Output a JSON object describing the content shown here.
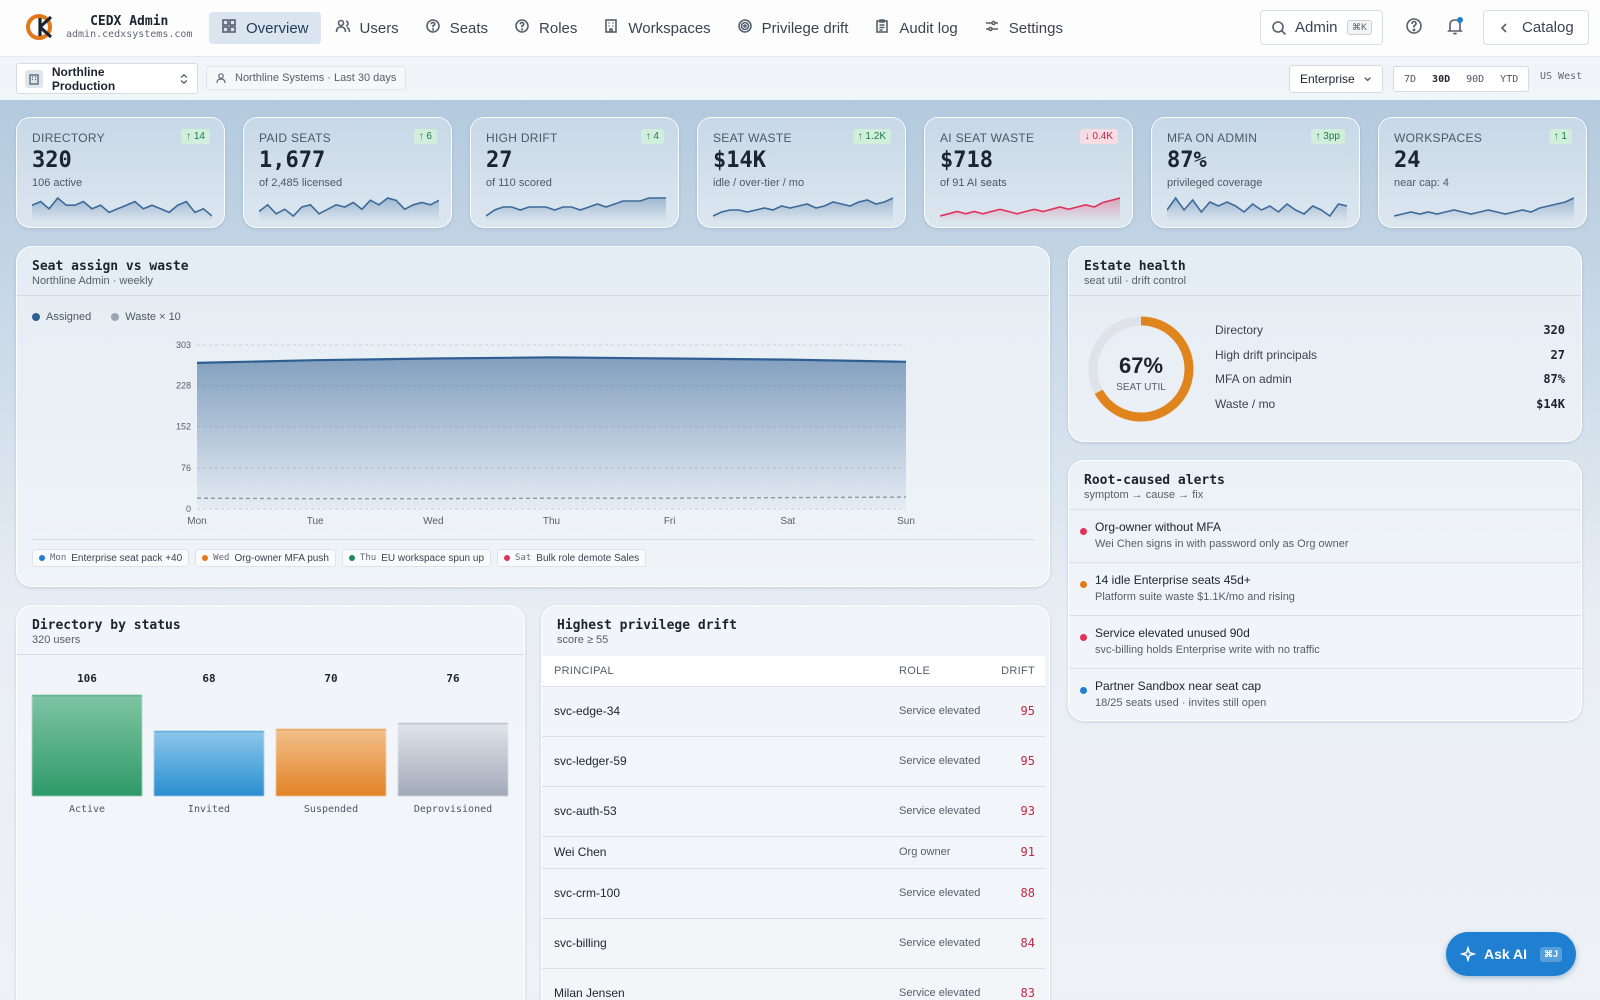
{
  "brand": {
    "name": "CEDX Admin",
    "domain": "admin.cedxsystems.com"
  },
  "nav": [
    {
      "label": "Overview",
      "icon": "grid-icon",
      "active": true
    },
    {
      "label": "Users",
      "icon": "users-icon"
    },
    {
      "label": "Seats",
      "icon": "help-circle-icon"
    },
    {
      "label": "Roles",
      "icon": "help-circle-icon"
    },
    {
      "label": "Workspaces",
      "icon": "building-icon"
    },
    {
      "label": "Privilege drift",
      "icon": "target-icon"
    },
    {
      "label": "Audit log",
      "icon": "clipboard-icon"
    },
    {
      "label": "Settings",
      "icon": "sliders-icon"
    }
  ],
  "search": {
    "label": "Admin",
    "shortcut": "⌘K"
  },
  "catalog": {
    "label": "Catalog"
  },
  "scope": {
    "org": "Northline Production",
    "context": "Northline Systems · Last 30 days",
    "plan": "Enterprise",
    "ranges": [
      "7D",
      "30D",
      "90D",
      "YTD"
    ],
    "active_range": "30D",
    "region": "US West"
  },
  "kpis": [
    {
      "label": "DIRECTORY",
      "delta": "↑ 14",
      "dir": "up",
      "value": "320",
      "sub": "106 active",
      "color": "#3c6a9a",
      "spark": [
        12,
        13,
        11,
        14,
        12,
        12,
        13,
        11,
        12,
        10,
        11,
        12,
        13,
        11,
        12,
        11,
        10,
        12,
        13,
        10,
        11,
        9
      ]
    },
    {
      "label": "PAID SEATS",
      "delta": "↑ 6",
      "dir": "up",
      "value": "1,677",
      "sub": "of 2,485 licensed",
      "color": "#3c6a9a",
      "spark": [
        9,
        12,
        8,
        10,
        7,
        11,
        12,
        8,
        10,
        12,
        11,
        13,
        10,
        14,
        12,
        15,
        14,
        10,
        12,
        13,
        12,
        14
      ]
    },
    {
      "label": "HIGH DRIFT",
      "delta": "↑ 4",
      "dir": "up",
      "value": "27",
      "sub": "of 110 scored",
      "color": "#3c6a9a",
      "spark": [
        5,
        7,
        8,
        8,
        7,
        8,
        8,
        8,
        7,
        8,
        8,
        7,
        8,
        9,
        8,
        9,
        10,
        10,
        10,
        11,
        11,
        11
      ]
    },
    {
      "label": "SEAT WASTE",
      "delta": "↑ 1.2K",
      "dir": "up",
      "value": "$14K",
      "sub": "idle / over-tier / mo",
      "color": "#3c6a9a",
      "spark": [
        5,
        7,
        8,
        8,
        7,
        8,
        9,
        8,
        10,
        9,
        10,
        11,
        9,
        10,
        12,
        11,
        10,
        12,
        13,
        11,
        12,
        14
      ]
    },
    {
      "label": "AI SEAT WASTE",
      "delta": "↓ 0.4K",
      "dir": "down",
      "value": "$718",
      "sub": "of 91 AI seats",
      "color": "#e0335a",
      "spark": [
        5,
        6,
        7,
        6,
        7,
        6,
        7,
        8,
        7,
        6,
        7,
        8,
        7,
        8,
        9,
        8,
        9,
        10,
        9,
        11,
        12,
        13
      ]
    },
    {
      "label": "MFA ON ADMIN",
      "delta": "↑ 3pp",
      "dir": "up",
      "value": "87%",
      "sub": "privileged coverage",
      "color": "#3c6a9a",
      "spark": [
        10,
        16,
        10,
        15,
        9,
        14,
        12,
        14,
        12,
        9,
        13,
        10,
        12,
        9,
        13,
        10,
        8,
        12,
        10,
        7,
        13,
        12
      ]
    },
    {
      "label": "WORKSPACES",
      "delta": "↑ 1",
      "dir": "up",
      "value": "24",
      "sub": "near cap: 4",
      "color": "#3c6a9a",
      "spark": [
        6,
        7,
        8,
        7,
        8,
        7,
        8,
        9,
        8,
        7,
        8,
        9,
        8,
        7,
        8,
        9,
        8,
        10,
        11,
        12,
        13,
        15
      ]
    }
  ],
  "seat_panel": {
    "title": "Seat assign vs waste",
    "subtitle": "Northline Admin · weekly",
    "legend": [
      {
        "label": "Assigned",
        "color": "#2f5f92"
      },
      {
        "label": "Waste × 10",
        "color": "#9aa6b4"
      }
    ],
    "events": [
      {
        "day": "Mon",
        "text": "Enterprise seat pack +40",
        "color": "#1f7fd1"
      },
      {
        "day": "Wed",
        "text": "Org-owner MFA push",
        "color": "#e0791a"
      },
      {
        "day": "Thu",
        "text": "EU workspace spun up",
        "color": "#1e8a58"
      },
      {
        "day": "Sat",
        "text": "Bulk role demote Sales",
        "color": "#e0335a"
      }
    ]
  },
  "chart_data": {
    "type": "area",
    "categories": [
      "Mon",
      "Tue",
      "Wed",
      "Thu",
      "Fri",
      "Sat",
      "Sun"
    ],
    "series": [
      {
        "name": "Assigned",
        "values": [
          270,
          275,
          278,
          280,
          278,
          276,
          272
        ],
        "color": "#2f5f92"
      },
      {
        "name": "Waste × 10",
        "values": [
          20,
          19,
          19,
          20,
          20,
          21,
          22
        ],
        "color": "#9aa6b4"
      }
    ],
    "yticks": [
      0,
      76,
      152,
      228,
      303
    ],
    "ylim": [
      0,
      303
    ],
    "grid": true,
    "legend_placement": "top-left"
  },
  "health": {
    "title": "Estate health",
    "subtitle": "seat util · drift control",
    "util_value": "67%",
    "util_fraction": 0.67,
    "util_label": "SEAT UTIL",
    "rows": [
      {
        "label": "Directory",
        "value": "320"
      },
      {
        "label": "High drift principals",
        "value": "27"
      },
      {
        "label": "MFA on admin",
        "value": "87%"
      },
      {
        "label": "Waste / mo",
        "value": "$14K"
      }
    ]
  },
  "alerts": {
    "title": "Root-caused alerts",
    "subtitle": "symptom → cause → fix",
    "items": [
      {
        "title": "Org-owner without MFA",
        "detail": "Wei Chen signs in with password only as Org owner",
        "color": "#e0335a"
      },
      {
        "title": "14 idle Enterprise seats 45d+",
        "detail": "Platform suite waste $1.1K/mo and rising",
        "color": "#e0791a"
      },
      {
        "title": "Service elevated unused 90d",
        "detail": "svc-billing holds Enterprise write with no traffic",
        "color": "#e0335a"
      },
      {
        "title": "Partner Sandbox near seat cap",
        "detail": "18/25 seats used · invites still open",
        "color": "#1f7fd1"
      }
    ]
  },
  "directory": {
    "title": "Directory by status",
    "subtitle": "320 users",
    "bars": [
      {
        "label": "Active",
        "value": 106,
        "top": "#7fc4a4",
        "bottom": "#2e9a68"
      },
      {
        "label": "Invited",
        "value": 68,
        "top": "#8cc6ea",
        "bottom": "#2a8fd0"
      },
      {
        "label": "Suspended",
        "value": 70,
        "top": "#f2be8a",
        "bottom": "#e28325"
      },
      {
        "label": "Deprovisioned",
        "value": 76,
        "top": "#dfe4ea",
        "bottom": "#a2aab8"
      }
    ]
  },
  "drift": {
    "title": "Highest privilege drift",
    "subtitle": "score ≥ 55",
    "headers": {
      "principal": "PRINCIPAL",
      "role": "ROLE",
      "drift": "DRIFT"
    },
    "rows": [
      {
        "principal": "svc-edge-34",
        "role": "Service elevated",
        "score": "95"
      },
      {
        "principal": "svc-ledger-59",
        "role": "Service elevated",
        "score": "95"
      },
      {
        "principal": "svc-auth-53",
        "role": "Service elevated",
        "score": "93"
      },
      {
        "principal": "Wei Chen",
        "role": "Org owner",
        "score": "91"
      },
      {
        "principal": "svc-crm-100",
        "role": "Service elevated",
        "score": "88"
      },
      {
        "principal": "svc-billing",
        "role": "Service elevated",
        "score": "84"
      },
      {
        "principal": "Milan Jensen",
        "role": "Service elevated",
        "score": "83"
      }
    ]
  },
  "ask_ai": {
    "label": "Ask AI",
    "shortcut": "⌘J"
  }
}
